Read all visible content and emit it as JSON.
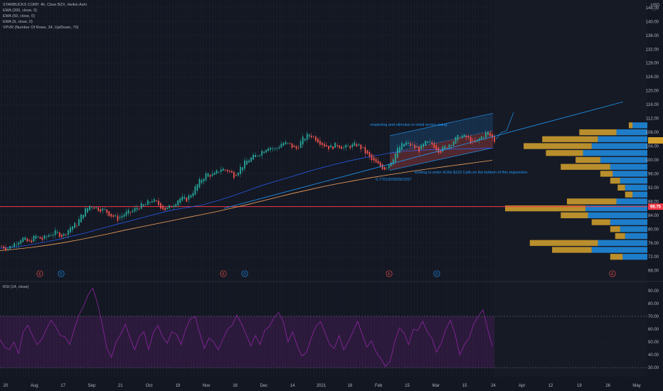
{
  "header": {
    "symbol_line": "STARBUCKS CORP, 4h, Cboe BZX, Heikin Ashi",
    "indicators": [
      "EMA (200, close, 0)",
      "EMA (50, close, 0)",
      "EMA (9, close, 0)",
      "VPVR (Number Of Rows, 24, Up/Down, 70)"
    ],
    "rsi_label": "RSI (14, close)",
    "currency": "USD"
  },
  "price_badge": "98.75",
  "annotations": {
    "top": "reopening and stimulus in retail sector swing.",
    "bottom": "looking to enter 4/16s $110 Calls on the bottom of this regression.",
    "ratio": "0.776100393561557"
  },
  "event_markers": [
    "E",
    "D",
    "E",
    "D",
    "E",
    "D",
    "E"
  ],
  "colors": {
    "background": "#131722",
    "up": "#26a69a",
    "down": "#ef5350",
    "ema200": "#f7a35c",
    "ema50": "#2962ff",
    "channel": "#2196f3",
    "vpvr_up": "#2196f3",
    "vpvr_down": "#d6a32e",
    "rsi": "#9c27b0",
    "hline": "#f23645"
  },
  "chart_data": [
    {
      "type": "line",
      "title": "STARBUCKS CORP, 4h, Cboe BZX, Heikin Ashi",
      "x_ticks": [
        "20",
        "Aug",
        "17",
        "Sep",
        "21",
        "Oct",
        "19",
        "Nov",
        "16",
        "Dec",
        "14",
        "2021",
        "18",
        "Feb",
        "15",
        "Mar",
        "15",
        "24",
        "Apr",
        "12",
        "19",
        "26",
        "May"
      ],
      "y_ticks": [
        68.0,
        72.0,
        76.0,
        80.0,
        84.0,
        88.0,
        92.0,
        96.0,
        100.0,
        104.0,
        108.0,
        112.0,
        116.0,
        120.0,
        124.0,
        128.0,
        132.0,
        136.0,
        140.0,
        144.0
      ],
      "ylim": [
        66.5,
        145
      ],
      "horizontal_line": 86.5,
      "series": [
        {
          "values": [
            75.0,
            74.5,
            76.0,
            77.5,
            76.0,
            78.0,
            77.0,
            78.5,
            79.0,
            78.0,
            80.5,
            81.5,
            85.0,
            87.0,
            86.0,
            85.5,
            84.0,
            83.0,
            84.5,
            85.0,
            86.5,
            87.0,
            88.5,
            87.0,
            85.5,
            87.0,
            89.0,
            88.5,
            91.0,
            94.0,
            96.0,
            95.5,
            97.5,
            97.0,
            95.5,
            98.0,
            100.0,
            101.0,
            102.5,
            104.0,
            103.0,
            105.0,
            104.5,
            103.0,
            106.0,
            107.5,
            106.0,
            104.5,
            103.5,
            104.5,
            103.5,
            104.0,
            104.5,
            102.5,
            100.0,
            98.5,
            97.5,
            100.0,
            103.5,
            105.0,
            104.0,
            103.0,
            105.0,
            104.5,
            102.5,
            104.0,
            105.5,
            107.0,
            106.5,
            104.5,
            106.5,
            108.0,
            105.5
          ]
        },
        {
          "name": "EMA (50, close, 0)",
          "values": [
            74.5,
            74.8,
            75.4,
            76.2,
            77.0,
            78.0,
            79.0,
            80.2,
            81.3,
            82.4,
            83.5,
            84.6,
            85.6,
            86.3,
            87.0,
            88.2,
            89.5,
            91.0,
            92.5,
            93.8,
            95.0,
            96.3,
            97.5,
            98.6,
            99.6,
            100.5,
            101.3,
            102.0,
            102.5,
            102.8,
            103.0,
            103.1,
            103.2,
            103.3,
            103.4
          ]
        },
        {
          "name": "EMA (200, close, 0)",
          "values": [
            73.8,
            74.2,
            74.7,
            75.3,
            76.0,
            76.8,
            77.7,
            78.6,
            79.6,
            80.5,
            81.4,
            82.3,
            83.2,
            84.1,
            85.0,
            86.0,
            87.0,
            88.1,
            89.2,
            90.3,
            91.3,
            92.3,
            93.2,
            94.0,
            94.8,
            95.5,
            96.2,
            96.9,
            97.5,
            98.1,
            98.7,
            99.3,
            99.9
          ]
        }
      ],
      "regression_channel": {
        "upper": [
          107.0,
          113.5
        ],
        "lower": [
          97.0,
          103.5
        ],
        "mid": [
          102.0,
          108.5
        ]
      },
      "trend_line": [
        [
          86.0,
          116.8
        ]
      ]
    },
    {
      "type": "line",
      "title": "RSI (14, close)",
      "y_ticks": [
        30.0,
        40.0,
        50.0,
        60.0,
        70.0,
        80.0,
        90.0
      ],
      "ylim": [
        24,
        96
      ],
      "bands": [
        30,
        70
      ],
      "series": [
        {
          "values": [
            52,
            46,
            44,
            50,
            41,
            58,
            63,
            55,
            48,
            52,
            60,
            67,
            62,
            55,
            54,
            48,
            60,
            71,
            78,
            87,
            92,
            80,
            64,
            45,
            38,
            50,
            56,
            64,
            53,
            44,
            54,
            58,
            44,
            57,
            63,
            54,
            49,
            58,
            56,
            48,
            60,
            68,
            70,
            57,
            45,
            53,
            50,
            44,
            52,
            60,
            63,
            71,
            64,
            56,
            47,
            55,
            48,
            59,
            62,
            69,
            73,
            66,
            50,
            58,
            47,
            39,
            42,
            53,
            62,
            66,
            57,
            48,
            45,
            55,
            44,
            50,
            58,
            66,
            56,
            46,
            51,
            42,
            37,
            31,
            35,
            50,
            61,
            57,
            48,
            60,
            59,
            66,
            58,
            53,
            42,
            49,
            60,
            67,
            56,
            40,
            48,
            53,
            64,
            70,
            75,
            60,
            47
          ]
        }
      ]
    },
    {
      "type": "bar",
      "title": "VPVR (Number Of Rows, 24, Up/Down, 70)",
      "price_levels": [
        110,
        108,
        106,
        104,
        102,
        100,
        98,
        96,
        94,
        92,
        90,
        88,
        86,
        84,
        82,
        80,
        78,
        76,
        74,
        72
      ],
      "series": [
        {
          "name": "Up",
          "values": [
            12,
            25,
            40,
            45,
            52,
            38,
            30,
            28,
            22,
            18,
            12,
            25,
            50,
            48,
            30,
            22,
            18,
            40,
            45,
            20
          ]
        },
        {
          "name": "Down",
          "values": [
            3,
            30,
            45,
            55,
            30,
            20,
            40,
            10,
            8,
            6,
            6,
            40,
            65,
            22,
            15,
            8,
            8,
            55,
            32,
            10
          ]
        }
      ]
    }
  ]
}
